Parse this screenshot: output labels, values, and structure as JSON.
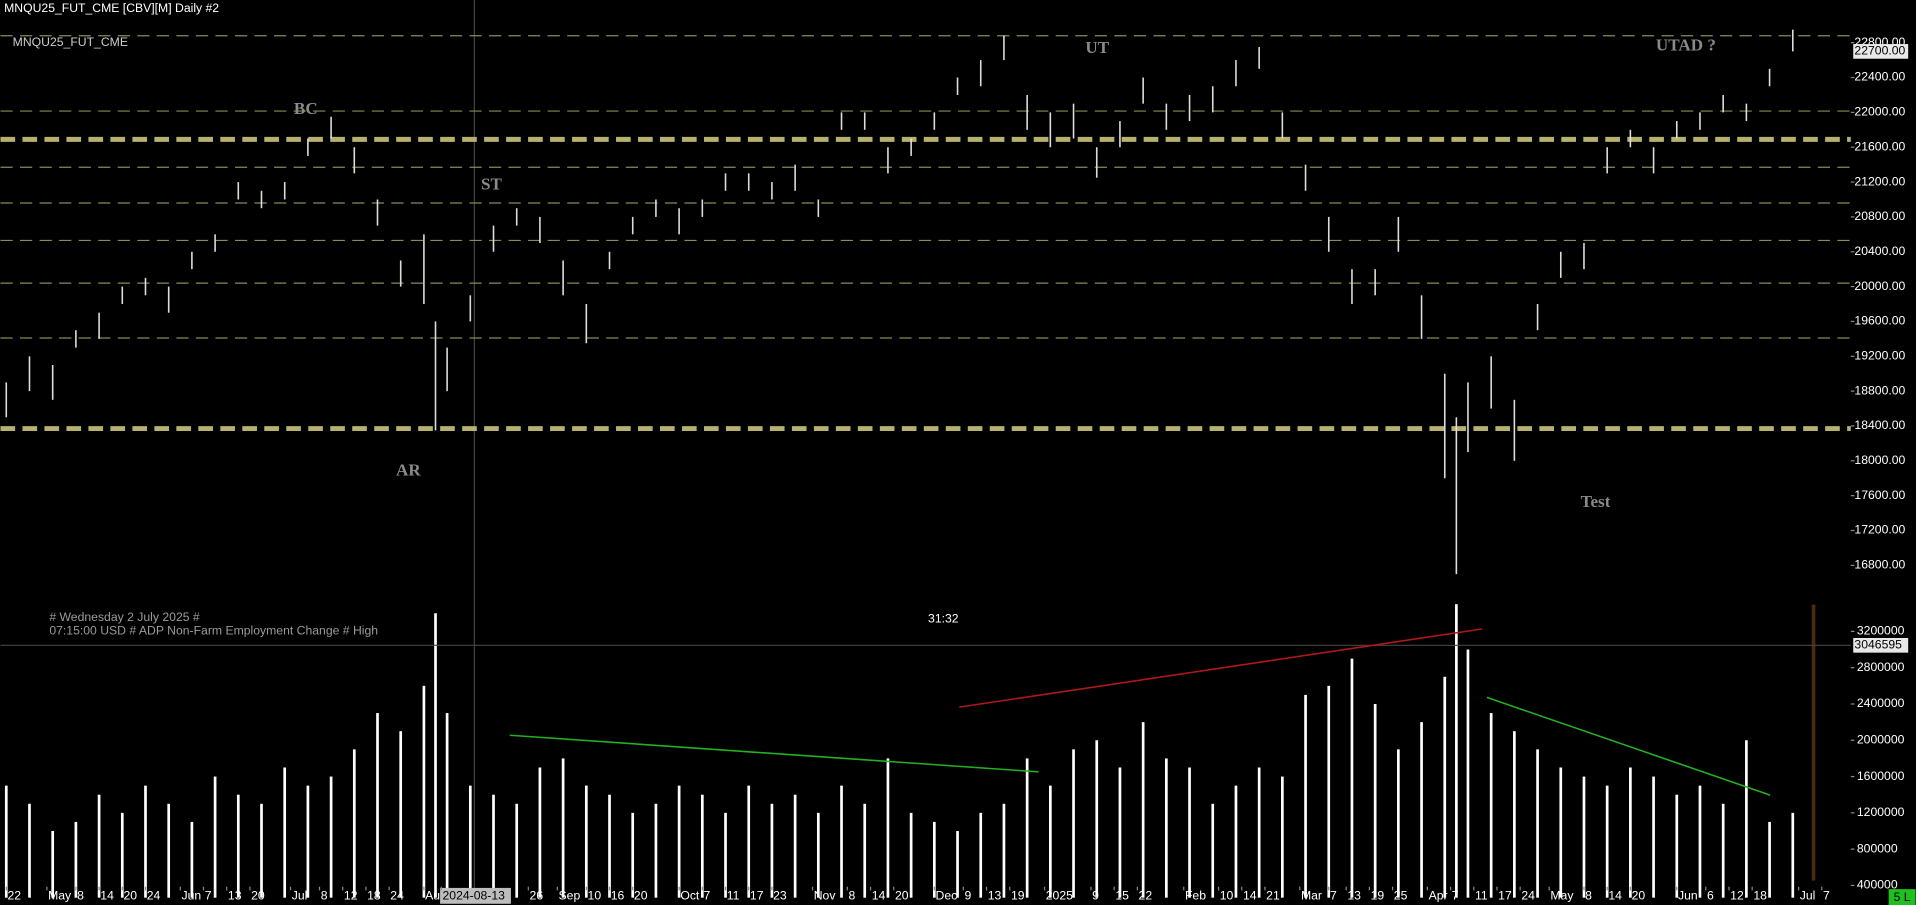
{
  "chart_data": {
    "type": "range",
    "title": "MNQU25_FUT_CME [CBV][M]  Daily #2",
    "symbol": "MNQU25_FUT_CME",
    "color": "#dddddd",
    "x": [
      1,
      5,
      9,
      13,
      17,
      21,
      25,
      29,
      33,
      37,
      41,
      45,
      49,
      53,
      57,
      61,
      65,
      69,
      73,
      75,
      77,
      81,
      85,
      89,
      93,
      97,
      101,
      105,
      109,
      113,
      117,
      121,
      125,
      129,
      133,
      137,
      141,
      145,
      149,
      153,
      157,
      161,
      165,
      169,
      173,
      177,
      181,
      185,
      189,
      193,
      197,
      201,
      205,
      209,
      213,
      217,
      221,
      225,
      229,
      233,
      237,
      241,
      245,
      249,
      251,
      253,
      257,
      261,
      265,
      269,
      273,
      277,
      281,
      285,
      289,
      293,
      297,
      301,
      305,
      309
    ],
    "high": [
      18900,
      19200,
      19100,
      19500,
      19700,
      20000,
      20100,
      20000,
      20400,
      20600,
      21200,
      21100,
      21200,
      21700,
      21950,
      21600,
      21000,
      20300,
      20600,
      19600,
      19300,
      19900,
      20700,
      20900,
      20800,
      20300,
      19800,
      20400,
      20800,
      21000,
      20900,
      21000,
      21300,
      21300,
      21200,
      21400,
      21000,
      22000,
      22000,
      21600,
      21700,
      22000,
      22400,
      22600,
      22880,
      22200,
      22000,
      22100,
      21600,
      21900,
      22400,
      22100,
      22200,
      22300,
      22600,
      22750,
      22000,
      21400,
      20800,
      20200,
      20200,
      20800,
      19900,
      19000,
      18500,
      18900,
      19200,
      18700,
      19800,
      20400,
      20500,
      21600,
      21800,
      21600,
      21900,
      22000,
      22200,
      22100,
      22500,
      22950
    ],
    "low": [
      18500,
      18800,
      18700,
      19300,
      19400,
      19800,
      19900,
      19700,
      20200,
      20400,
      21000,
      20900,
      21000,
      21500,
      21700,
      21300,
      20700,
      20000,
      19800,
      18350,
      18800,
      19600,
      20400,
      20700,
      20500,
      19900,
      19350,
      20200,
      20600,
      20800,
      20600,
      20800,
      21100,
      21100,
      21000,
      21100,
      20800,
      21800,
      21800,
      21300,
      21500,
      21800,
      22200,
      22300,
      22600,
      21800,
      21600,
      21700,
      21250,
      21600,
      22100,
      21800,
      21900,
      22000,
      22300,
      22500,
      21700,
      21100,
      20400,
      19800,
      19900,
      20400,
      19400,
      17800,
      16700,
      18100,
      18600,
      18000,
      19500,
      20100,
      20200,
      21300,
      21600,
      21300,
      21700,
      21800,
      22000,
      21900,
      22300,
      22700
    ],
    "xlim": [
      0,
      319
    ],
    "xticks": [
      {
        "value": 1,
        "label": "22"
      },
      {
        "value": 8,
        "label": "May"
      },
      {
        "value": 13,
        "label": "8"
      },
      {
        "value": 17,
        "label": "14"
      },
      {
        "value": 21,
        "label": "20"
      },
      {
        "value": 25,
        "label": "24"
      },
      {
        "value": 31,
        "label": "Jun"
      },
      {
        "value": 35,
        "label": "7"
      },
      {
        "value": 39,
        "label": "13"
      },
      {
        "value": 43,
        "label": "20"
      },
      {
        "value": 50,
        "label": "Jul"
      },
      {
        "value": 55,
        "label": "8"
      },
      {
        "value": 59,
        "label": "12"
      },
      {
        "value": 63,
        "label": "18"
      },
      {
        "value": 67,
        "label": "24"
      },
      {
        "value": 73,
        "label": "Aug"
      },
      {
        "value": 76,
        "label": "2024-08-13"
      },
      {
        "value": 91,
        "label": "26"
      },
      {
        "value": 96,
        "label": "Sep"
      },
      {
        "value": 101,
        "label": "10"
      },
      {
        "value": 105,
        "label": "16"
      },
      {
        "value": 109,
        "label": "20"
      },
      {
        "value": 117,
        "label": "Oct"
      },
      {
        "value": 121,
        "label": "7"
      },
      {
        "value": 125,
        "label": "11"
      },
      {
        "value": 129,
        "label": "17"
      },
      {
        "value": 133,
        "label": "23"
      },
      {
        "value": 140,
        "label": "Nov"
      },
      {
        "value": 146,
        "label": "8"
      },
      {
        "value": 150,
        "label": "14"
      },
      {
        "value": 154,
        "label": "20"
      },
      {
        "value": 161,
        "label": "Dec"
      },
      {
        "value": 166,
        "label": "9"
      },
      {
        "value": 170,
        "label": "13"
      },
      {
        "value": 174,
        "label": "19"
      },
      {
        "value": 180,
        "label": "2025"
      },
      {
        "value": 188,
        "label": "9"
      },
      {
        "value": 192,
        "label": "15"
      },
      {
        "value": 196,
        "label": "22"
      },
      {
        "value": 204,
        "label": "Feb"
      },
      {
        "value": 210,
        "label": "10"
      },
      {
        "value": 214,
        "label": "14"
      },
      {
        "value": 218,
        "label": "21"
      },
      {
        "value": 224,
        "label": "Mar"
      },
      {
        "value": 229,
        "label": "7"
      },
      {
        "value": 232,
        "label": "13"
      },
      {
        "value": 236,
        "label": "19"
      },
      {
        "value": 240,
        "label": "25"
      },
      {
        "value": 246,
        "label": "Apr"
      },
      {
        "value": 250,
        "label": "7"
      },
      {
        "value": 254,
        "label": "11"
      },
      {
        "value": 258,
        "label": "17"
      },
      {
        "value": 262,
        "label": "24"
      },
      {
        "value": 267,
        "label": "May"
      },
      {
        "value": 273,
        "label": "8"
      },
      {
        "value": 277,
        "label": "14"
      },
      {
        "value": 281,
        "label": "20"
      },
      {
        "value": 289,
        "label": "Jun"
      },
      {
        "value": 294,
        "label": "6"
      },
      {
        "value": 298,
        "label": "12"
      },
      {
        "value": 302,
        "label": "18"
      },
      {
        "value": 310,
        "label": "Jul"
      },
      {
        "value": 314,
        "label": "7"
      }
    ],
    "ylim": [
      16350,
      23290
    ],
    "yticks": [
      {
        "value": 16800,
        "label": "16800.00"
      },
      {
        "value": 17200,
        "label": "17200.00"
      },
      {
        "value": 17600,
        "label": "17600.00"
      },
      {
        "value": 18000,
        "label": "18000.00"
      },
      {
        "value": 18400,
        "label": "18400.00"
      },
      {
        "value": 18800,
        "label": "18800.00"
      },
      {
        "value": 19200,
        "label": "19200.00"
      },
      {
        "value": 19600,
        "label": "19600.00"
      },
      {
        "value": 20000,
        "label": "20000.00"
      },
      {
        "value": 20400,
        "label": "20400.00"
      },
      {
        "value": 20800,
        "label": "20800.00"
      },
      {
        "value": 21200,
        "label": "21200.00"
      },
      {
        "value": 21600,
        "label": "21600.00"
      },
      {
        "value": 22000,
        "label": "22000.00"
      },
      {
        "value": 22400,
        "label": "22400.00"
      },
      {
        "value": 22800,
        "label": "22800.00"
      }
    ],
    "levels": [
      {
        "value": 22880,
        "style": "thin"
      },
      {
        "value": 22015,
        "style": "thin"
      },
      {
        "value": 21690,
        "style": "thick"
      },
      {
        "value": 21370,
        "style": "thin"
      },
      {
        "value": 20960,
        "style": "thin"
      },
      {
        "value": 20530,
        "style": "thin"
      },
      {
        "value": 20040,
        "style": "thin"
      },
      {
        "value": 19410,
        "style": "thin"
      },
      {
        "value": 18370,
        "style": "thick"
      }
    ],
    "last_price": {
      "value": 22700,
      "label": "22700.00"
    },
    "annotations": [
      "BC",
      "ST",
      "AR",
      "UT",
      "UTAD ?",
      "Test"
    ],
    "volume": {
      "type": "bar",
      "color": "#ffffff",
      "values": [
        1500000,
        1300000,
        1000000,
        1100000,
        1400000,
        1200000,
        1500000,
        1300000,
        1100000,
        1600000,
        1400000,
        1300000,
        1700000,
        1500000,
        1600000,
        1900000,
        2300000,
        2100000,
        2600000,
        3400000,
        2300000,
        1500000,
        1400000,
        1300000,
        1700000,
        1800000,
        1500000,
        1400000,
        1200000,
        1300000,
        1500000,
        1400000,
        1200000,
        1500000,
        1300000,
        1400000,
        1200000,
        1500000,
        1300000,
        1800000,
        1200000,
        1100000,
        1000000,
        1200000,
        1300000,
        1800000,
        1500000,
        1900000,
        2000000,
        1700000,
        2200000,
        1800000,
        1700000,
        1300000,
        1500000,
        1700000,
        1600000,
        2500000,
        2600000,
        2900000,
        2400000,
        1900000,
        2200000,
        2700000,
        3500000,
        3000000,
        2300000,
        2100000,
        1900000,
        1700000,
        1600000,
        1500000,
        1700000,
        1600000,
        1400000,
        1500000,
        1300000,
        2000000,
        1100000,
        1200000
      ],
      "ylim": [
        265000,
        3496000
      ],
      "yticks": [
        400000,
        800000,
        1200000,
        1600000,
        2000000,
        2400000,
        2800000,
        3200000
      ],
      "last_value": 3046595,
      "event": [
        "# Wednesday 2 July 2025 #",
        "07:15:00 USD # ADP  Non-Farm  Employment  Change # High"
      ],
      "timer": "31:32"
    },
    "status": "5 L"
  }
}
